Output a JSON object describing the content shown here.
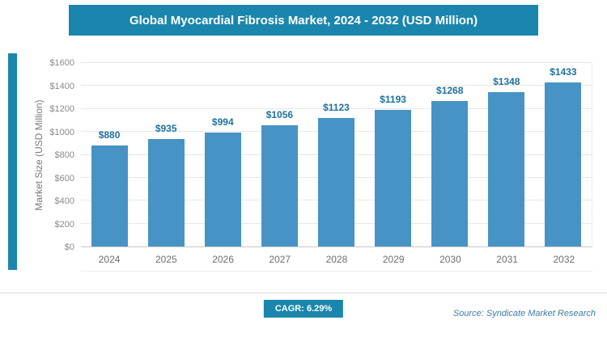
{
  "header": {
    "title": "Global Myocardial Fibrosis Market, 2024 - 2032 (USD Million)"
  },
  "chart_data": {
    "type": "bar",
    "categories": [
      "2024",
      "2025",
      "2026",
      "2027",
      "2028",
      "2029",
      "2030",
      "2031",
      "2032"
    ],
    "values": [
      880,
      935,
      994,
      1056,
      1123,
      1193,
      1268,
      1348,
      1433
    ],
    "value_labels": [
      "$880",
      "$935",
      "$994",
      "$1056",
      "$1123",
      "$1193",
      "$1268",
      "$1348",
      "$1433"
    ],
    "title": "Global Myocardial Fibrosis Market, 2024 - 2032 (USD Million)",
    "xlabel": "",
    "ylabel": "Market Size (USD Million)",
    "ylim": [
      0,
      1600
    ],
    "ytick_step": 200,
    "ytick_labels": [
      "$0",
      "$200",
      "$400",
      "$600",
      "$800",
      "$1000",
      "$1200",
      "$1400",
      "$1600"
    ],
    "grid": "horizontal",
    "legend": "none",
    "bar_color": "#4793c5",
    "value_label_color": "#20719e"
  },
  "footer": {
    "cagr_label": "CAGR: 6.29%",
    "source": "Source: Syndicate Market Research"
  },
  "colors": {
    "accent": "#1a86ad",
    "bar": "#4793c5",
    "value_label": "#20719e",
    "source_text": "#3a7ca6"
  }
}
